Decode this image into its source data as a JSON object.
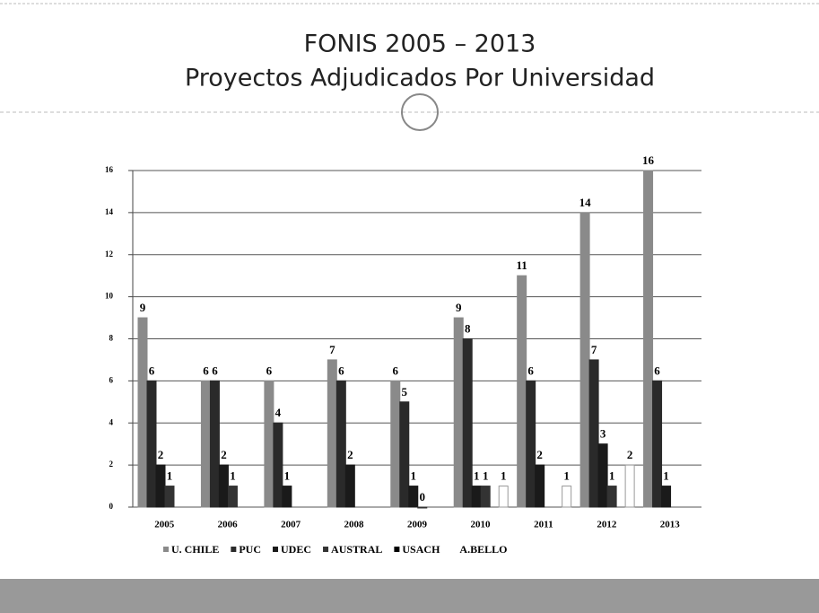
{
  "chart_data": {
    "type": "bar",
    "title": "FONIS  2005 – 2013",
    "subtitle": "Proyectos Adjudicados Por Universidad",
    "categories": [
      "2005",
      "2006",
      "2007",
      "2008",
      "2009",
      "2010",
      "2011",
      "2012",
      "2013"
    ],
    "series": [
      {
        "name": "U. CHILE",
        "color": "#8a8a8a",
        "values": [
          9,
          6,
          6,
          7,
          6,
          9,
          11,
          14,
          16
        ]
      },
      {
        "name": "PUC",
        "color": "#2a2a2a",
        "values": [
          6,
          6,
          4,
          6,
          5,
          8,
          6,
          7,
          6
        ]
      },
      {
        "name": "UDEC",
        "color": "#1a1a1a",
        "values": [
          2,
          2,
          1,
          2,
          1,
          1,
          2,
          3,
          1
        ]
      },
      {
        "name": "AUSTRAL",
        "color": "#333333",
        "values": [
          1,
          1,
          null,
          null,
          0,
          1,
          null,
          1,
          null
        ]
      },
      {
        "name": "USACH",
        "color": "#000000",
        "values": [
          null,
          null,
          null,
          null,
          null,
          null,
          null,
          null,
          null
        ]
      },
      {
        "name": "A.BELLO",
        "color": "#ffffff",
        "values": [
          null,
          null,
          null,
          null,
          null,
          1,
          1,
          2,
          null
        ]
      }
    ],
    "ylim": [
      0,
      16
    ],
    "yticks": [
      0,
      2,
      4,
      6,
      8,
      10,
      12,
      14,
      16
    ],
    "grid": true
  }
}
